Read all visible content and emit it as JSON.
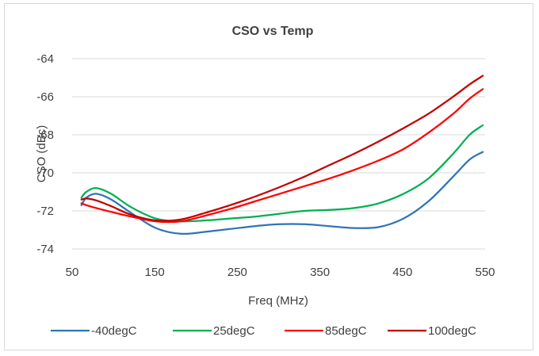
{
  "chart_data": {
    "type": "line",
    "title": "CSO vs Temp",
    "xlabel": "Freq (MHz)",
    "ylabel": "CSO (dBc)",
    "xlim": [
      50,
      550
    ],
    "ylim": [
      -74,
      -64
    ],
    "xticks": [
      50,
      150,
      250,
      350,
      450,
      550
    ],
    "yticks": [
      -74,
      -72,
      -70,
      -68,
      -66,
      -64
    ],
    "xtick_labels": [
      "50",
      "150",
      "250",
      "350",
      "450",
      "550"
    ],
    "ytick_labels": [
      "-74",
      "-72",
      "-70",
      "-68",
      "-66",
      "-64"
    ],
    "grid": "horizontal",
    "legend_position": "bottom",
    "series": [
      {
        "name": "-40degC",
        "color": "#2e75b6",
        "x": [
          61.25,
          67.25,
          79.25,
          97.25,
          121.25,
          151.25,
          181.25,
          211.25,
          241.25,
          271.25,
          301.25,
          331.25,
          361.25,
          391.25,
          421.25,
          451.25,
          481.25,
          511.25,
          531.25,
          547.25
        ],
        "y": [
          -71.7,
          -71.3,
          -71.1,
          -71.4,
          -72.1,
          -72.9,
          -73.2,
          -73.1,
          -72.95,
          -72.8,
          -72.7,
          -72.7,
          -72.8,
          -72.9,
          -72.85,
          -72.4,
          -71.5,
          -70.2,
          -69.3,
          -68.9
        ]
      },
      {
        "name": "25degC",
        "color": "#00b050",
        "x": [
          61.25,
          67.25,
          79.25,
          97.25,
          121.25,
          151.25,
          181.25,
          211.25,
          241.25,
          271.25,
          301.25,
          331.25,
          361.25,
          391.25,
          421.25,
          451.25,
          481.25,
          511.25,
          531.25,
          547.25
        ],
        "y": [
          -71.3,
          -71.0,
          -70.8,
          -71.1,
          -71.8,
          -72.4,
          -72.55,
          -72.5,
          -72.4,
          -72.3,
          -72.15,
          -72.0,
          -71.95,
          -71.85,
          -71.6,
          -71.1,
          -70.3,
          -69.0,
          -68.0,
          -67.5
        ]
      },
      {
        "name": "85degC",
        "color": "#ff0000",
        "x": [
          61.25,
          67.25,
          79.25,
          97.25,
          121.25,
          151.25,
          181.25,
          211.25,
          241.25,
          271.25,
          301.25,
          331.25,
          361.25,
          391.25,
          421.25,
          451.25,
          481.25,
          511.25,
          531.25,
          547.25
        ],
        "y": [
          -71.6,
          -71.7,
          -71.85,
          -72.05,
          -72.3,
          -72.55,
          -72.55,
          -72.25,
          -71.9,
          -71.5,
          -71.1,
          -70.7,
          -70.3,
          -69.85,
          -69.35,
          -68.75,
          -67.9,
          -66.9,
          -66.1,
          -65.6
        ]
      },
      {
        "name": "100degC",
        "color": "#c00000",
        "x": [
          61.25,
          67.25,
          79.25,
          97.25,
          121.25,
          151.25,
          181.25,
          211.25,
          241.25,
          271.25,
          301.25,
          331.25,
          361.25,
          391.25,
          421.25,
          451.25,
          481.25,
          511.25,
          531.25,
          547.25
        ],
        "y": [
          -71.4,
          -71.35,
          -71.45,
          -71.75,
          -72.2,
          -72.5,
          -72.45,
          -72.1,
          -71.7,
          -71.25,
          -70.75,
          -70.2,
          -69.6,
          -69.0,
          -68.35,
          -67.65,
          -66.9,
          -66.0,
          -65.35,
          -64.9
        ]
      }
    ]
  }
}
